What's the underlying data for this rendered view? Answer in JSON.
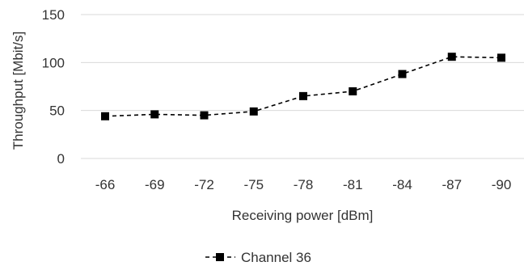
{
  "chart_data": {
    "type": "line",
    "title": "",
    "xlabel": "Receiving power [dBm]",
    "ylabel": "Throughput [Mbit/s]",
    "categories": [
      "-66",
      "-69",
      "-72",
      "-75",
      "-78",
      "-81",
      "-84",
      "-87",
      "-90"
    ],
    "series": [
      {
        "name": "Channel 36",
        "values": [
          44,
          46,
          45,
          49,
          65,
          70,
          88,
          106,
          105
        ]
      }
    ],
    "ylim": [
      0,
      150
    ],
    "yticks": [
      "0",
      "50",
      "100",
      "150"
    ],
    "grid": true,
    "legend_position": "bottom",
    "line_style": "dashed",
    "marker": "square",
    "colors": {
      "series": "#000000",
      "grid": "#d9d9d9",
      "text": "#333333"
    }
  }
}
